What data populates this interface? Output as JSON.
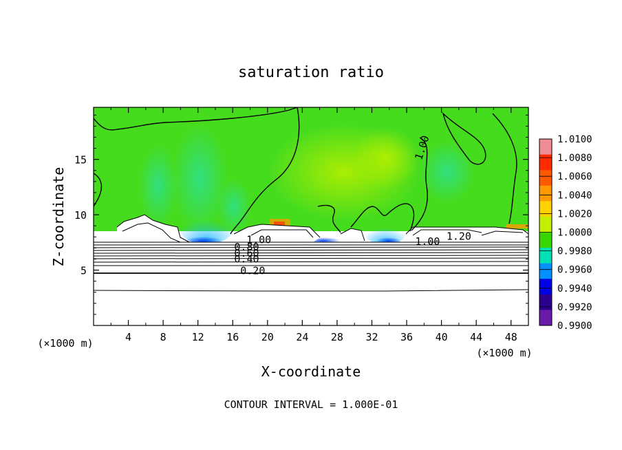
{
  "chart_data": {
    "type": "heatmap",
    "title": "saturation ratio",
    "xlabel": "X-coordinate",
    "ylabel": "Z-coordinate",
    "x_unit": "(×1000 m)",
    "x_unit_right": "(×1000 m)",
    "xlim": [
      0,
      50
    ],
    "ylim": [
      0,
      19.7
    ],
    "x_ticks": [
      4,
      8,
      12,
      16,
      20,
      24,
      28,
      32,
      36,
      40,
      44,
      48
    ],
    "y_ticks": [
      5,
      10,
      15
    ],
    "footer": "CONTOUR INTERVAL = 1.000E-01",
    "colorbar": {
      "labels": [
        "1.0100",
        "1.0080",
        "1.0060",
        "1.0040",
        "1.0020",
        "1.0000",
        "0.9980",
        "0.9960",
        "0.9940",
        "0.9920",
        "0.9900"
      ],
      "colors": [
        "#f08c96",
        "#ff2a00",
        "#ff5a00",
        "#ff9a00",
        "#ffd200",
        "#c6ef00",
        "#3ad600",
        "#00e0b4",
        "#0090ff",
        "#0000e6",
        "#2a008c",
        "#6a1aa8"
      ]
    },
    "contour_labels": [
      {
        "text": "0.20",
        "x": 18.3,
        "z": 4.75
      },
      {
        "text": "0.40",
        "x": 17.6,
        "z": 5.8
      },
      {
        "text": "0.60",
        "x": 17.6,
        "z": 6.35
      },
      {
        "text": "0.80",
        "x": 17.6,
        "z": 6.9
      },
      {
        "text": "1.00",
        "x": 19.0,
        "z": 7.55
      },
      {
        "text": "1.00",
        "x": 38.4,
        "z": 7.4
      },
      {
        "text": "1.20",
        "x": 42.0,
        "z": 7.85
      },
      {
        "text": "1.00",
        "x": 38.0,
        "z": 16.0
      }
    ]
  }
}
